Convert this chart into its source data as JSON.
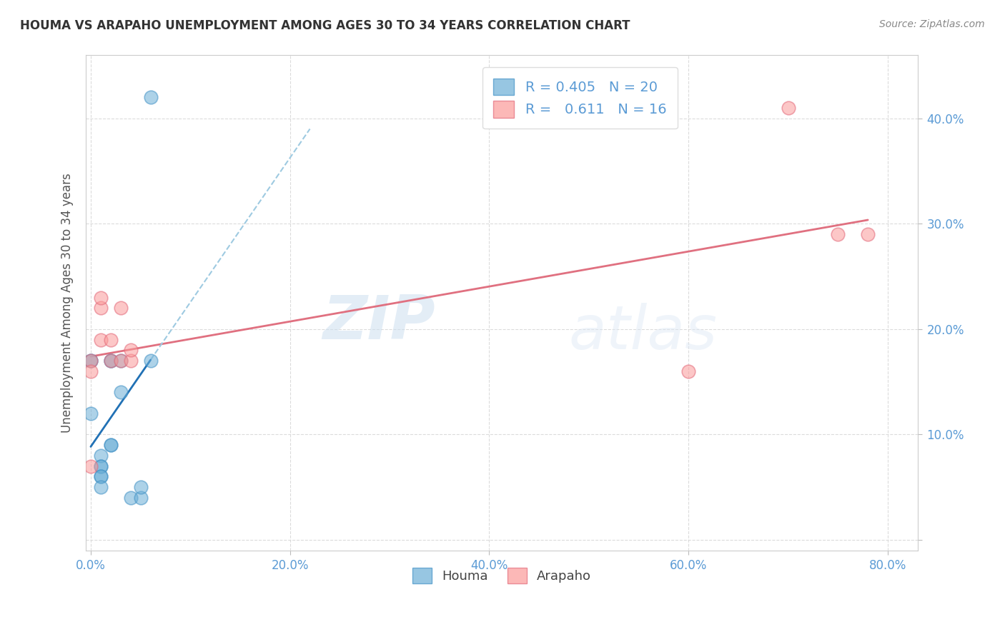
{
  "title": "HOUMA VS ARAPAHO UNEMPLOYMENT AMONG AGES 30 TO 34 YEARS CORRELATION CHART",
  "source": "Source: ZipAtlas.com",
  "ylabel": "Unemployment Among Ages 30 to 34 years",
  "houma_color": "#6baed6",
  "houma_edge_color": "#4292c6",
  "arapaho_color": "#fb9a99",
  "arapaho_edge_color": "#e3697a",
  "houma_line_color": "#2171b5",
  "houma_dash_color": "#9ecae1",
  "arapaho_line_color": "#e07080",
  "houma_R": 0.405,
  "houma_N": 20,
  "arapaho_R": 0.611,
  "arapaho_N": 16,
  "houma_x": [
    0.0,
    0.0,
    0.01,
    0.01,
    0.01,
    0.01,
    0.01,
    0.01,
    0.02,
    0.02,
    0.02,
    0.02,
    0.03,
    0.03,
    0.04,
    0.05,
    0.05,
    0.06,
    0.0,
    0.06
  ],
  "houma_y": [
    0.17,
    0.12,
    0.08,
    0.07,
    0.07,
    0.06,
    0.06,
    0.05,
    0.09,
    0.09,
    0.17,
    0.17,
    0.14,
    0.17,
    0.04,
    0.04,
    0.05,
    0.42,
    0.17,
    0.17
  ],
  "arapaho_x": [
    0.0,
    0.0,
    0.0,
    0.01,
    0.01,
    0.01,
    0.02,
    0.02,
    0.03,
    0.03,
    0.04,
    0.04,
    0.6,
    0.7,
    0.75,
    0.78
  ],
  "arapaho_y": [
    0.17,
    0.16,
    0.07,
    0.22,
    0.23,
    0.19,
    0.19,
    0.17,
    0.22,
    0.17,
    0.17,
    0.18,
    0.16,
    0.41,
    0.29,
    0.29
  ],
  "xlim": [
    -0.005,
    0.83
  ],
  "ylim": [
    -0.01,
    0.46
  ],
  "xticks": [
    0.0,
    0.2,
    0.4,
    0.6,
    0.8
  ],
  "xtick_labels": [
    "0.0%",
    "20.0%",
    "40.0%",
    "60.0%",
    "80.0%"
  ],
  "yticks": [
    0.0,
    0.1,
    0.2,
    0.3,
    0.4
  ],
  "ytick_labels": [
    "",
    "10.0%",
    "20.0%",
    "30.0%",
    "40.0%"
  ],
  "watermark_zip": "ZIP",
  "watermark_atlas": "atlas",
  "background_color": "#ffffff",
  "grid_color": "#d8d8d8",
  "tick_color": "#5b9bd5",
  "legend_label_color": "#5b9bd5"
}
